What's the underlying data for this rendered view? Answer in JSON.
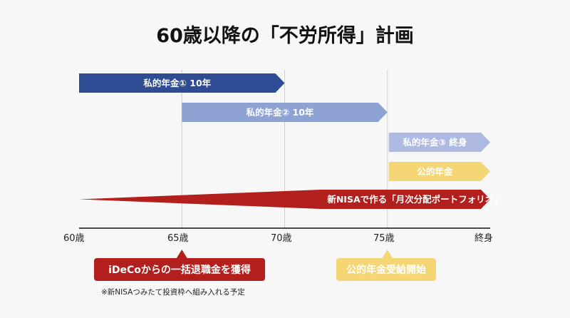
{
  "title": "60歳以降の「不労所得」計画",
  "axis": {
    "ticks": [
      "60歳",
      "65歳",
      "70歳",
      "75歳",
      "終身"
    ]
  },
  "bars": [
    {
      "label": "私的年金① 10年",
      "start": 0,
      "end": 2,
      "color": "#2e4c94"
    },
    {
      "label": "私的年金② 10年",
      "start": 1,
      "end": 3,
      "color": "#8ea3d3"
    },
    {
      "label": "私的年金③ 終身",
      "start": 3,
      "end": 4,
      "color": "#aebae0"
    },
    {
      "label": "公的年金",
      "start": 3,
      "end": 4,
      "color": "#f4d675"
    },
    {
      "label": "新NISAで作る「月次分配ポートフォリオ」",
      "start": 0,
      "end": 4,
      "color": "#b21f1c",
      "wedge": true
    }
  ],
  "callouts": [
    {
      "label": "iDeCoからの一括退職金を獲得",
      "at": 1,
      "color": "#b21f1c"
    },
    {
      "label": "公的年金受給開始",
      "at": 3,
      "color": "#f4d675"
    }
  ],
  "note": "※新NISAつみたて投資枠へ組み入れる予定"
}
